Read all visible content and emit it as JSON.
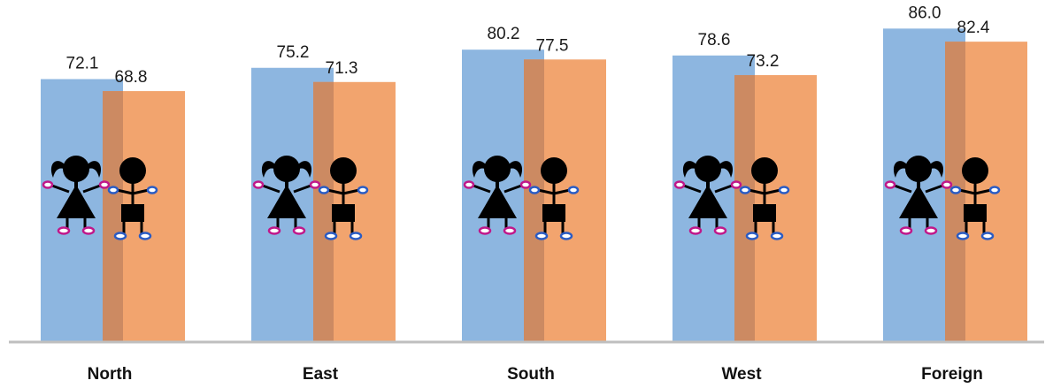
{
  "chart_data": {
    "type": "bar",
    "categories": [
      "North",
      "East",
      "South",
      "West",
      "Foreign"
    ],
    "series": [
      {
        "values": [
          72.1,
          75.2,
          80.2,
          78.6,
          86.0
        ],
        "color": "#8db6e0",
        "icon": "girl-figure-icon"
      },
      {
        "values": [
          68.8,
          71.3,
          77.5,
          73.2,
          82.4
        ],
        "color": "#f2a46e",
        "icon": "boy-figure-icon"
      }
    ],
    "value_labels": [
      [
        "72.1",
        "75.2",
        "80.2",
        "78.6",
        "86.0"
      ],
      [
        "68.8",
        "71.3",
        "77.5",
        "73.2",
        "82.4"
      ]
    ],
    "title": "",
    "xlabel": "",
    "ylabel": "",
    "ylim": [
      0,
      89
    ],
    "grid": false,
    "legend": "none",
    "overlap_color": "#cc8a62",
    "baseline_color": "#bfbfbf"
  }
}
